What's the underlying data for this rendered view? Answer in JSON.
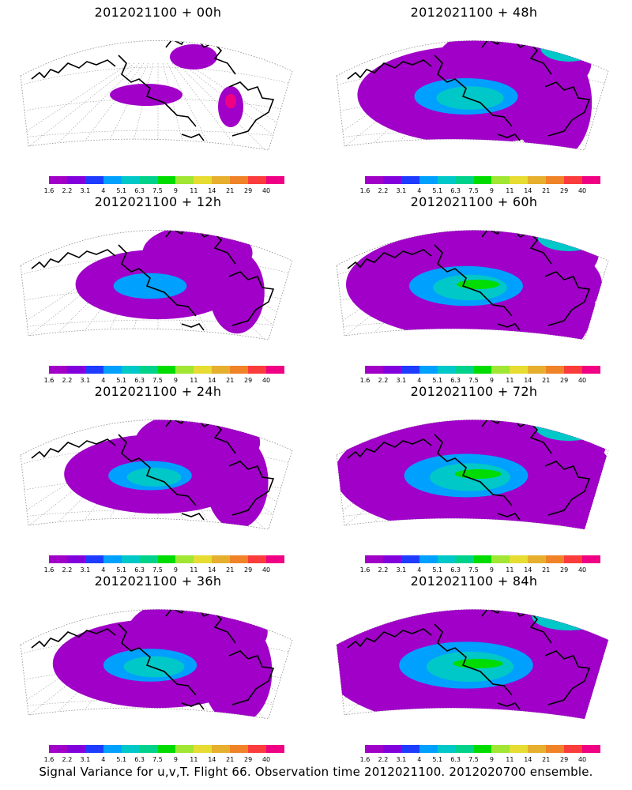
{
  "figure": {
    "caption": "Signal Variance for u,v,T. Flight 66. Observation time 2012021100. 2012020700 ensemble."
  },
  "colorbar": {
    "labels": [
      "1.6",
      "2.2",
      "3.1",
      "4",
      "5.1",
      "6.3",
      "7.5",
      "9",
      "11",
      "14",
      "21",
      "29",
      "40"
    ],
    "colors": [
      "#a000c8",
      "#8200dc",
      "#1e3cff",
      "#00a0ff",
      "#00c8c8",
      "#00d28c",
      "#00dc00",
      "#a0e632",
      "#e6dc32",
      "#e6af2d",
      "#f08228",
      "#fa3c3c",
      "#f00082"
    ]
  },
  "panels": [
    {
      "title": "2012021100 + 00h",
      "spread": 0
    },
    {
      "title": "2012021100 + 48h",
      "spread": 4
    },
    {
      "title": "2012021100 + 12h",
      "spread": 1
    },
    {
      "title": "2012021100 + 60h",
      "spread": 5
    },
    {
      "title": "2012021100 + 24h",
      "spread": 2
    },
    {
      "title": "2012021100 + 72h",
      "spread": 6
    },
    {
      "title": "2012021100 + 36h",
      "spread": 3
    },
    {
      "title": "2012021100 + 84h",
      "spread": 7
    }
  ]
}
